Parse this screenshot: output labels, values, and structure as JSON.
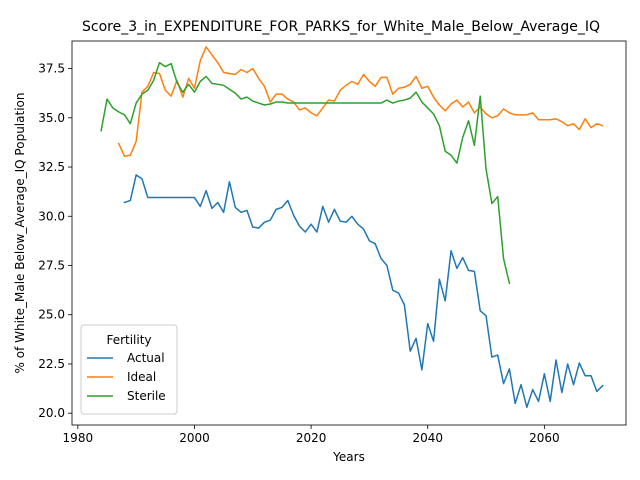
{
  "chart_data": {
    "type": "line",
    "title": "Score_3_in_EXPENDITURE_FOR_PARKS_for_White_Male_Below_Average_IQ",
    "xlabel": "Years",
    "ylabel": "% of White_Male Below_Average_IQ Population",
    "xlim": [
      1979,
      2074
    ],
    "ylim": [
      19.4,
      38.9
    ],
    "xticks": [
      1980,
      2000,
      2020,
      2040,
      2060
    ],
    "yticks": [
      20.0,
      22.5,
      25.0,
      27.5,
      30.0,
      32.5,
      35.0,
      37.5
    ],
    "grid": false,
    "legend": {
      "title": "Fertility",
      "placement": "lower-left"
    },
    "series": [
      {
        "name": "Actual",
        "color": "#1f77b4",
        "x": [
          1988,
          1989,
          1990,
          1991,
          1992,
          1993,
          1994,
          1995,
          1996,
          1997,
          1998,
          1999,
          2000,
          2001,
          2002,
          2003,
          2004,
          2005,
          2006,
          2007,
          2008,
          2009,
          2010,
          2011,
          2012,
          2013,
          2014,
          2015,
          2016,
          2017,
          2018,
          2019,
          2020,
          2021,
          2022,
          2023,
          2024,
          2025,
          2026,
          2027,
          2028,
          2029,
          2030,
          2031,
          2032,
          2033,
          2034,
          2035,
          2036,
          2037,
          2038,
          2039,
          2040,
          2041,
          2042,
          2043,
          2044,
          2045,
          2046,
          2047,
          2048,
          2049,
          2050,
          2051,
          2052,
          2053,
          2054,
          2055,
          2056,
          2057,
          2058,
          2059,
          2060,
          2061,
          2062,
          2063,
          2064,
          2065,
          2066,
          2067,
          2068,
          2069,
          2070
        ],
        "y": [
          30.7,
          30.8,
          32.1,
          31.9,
          30.95,
          30.95,
          30.95,
          30.95,
          30.95,
          30.95,
          30.95,
          30.95,
          30.95,
          30.5,
          31.3,
          30.4,
          30.7,
          30.2,
          31.75,
          30.45,
          30.2,
          30.3,
          29.45,
          29.4,
          29.7,
          29.8,
          30.35,
          30.45,
          30.8,
          30.05,
          29.5,
          29.2,
          29.6,
          29.2,
          30.5,
          29.7,
          30.35,
          29.75,
          29.7,
          30.0,
          29.6,
          29.35,
          28.75,
          28.6,
          27.85,
          27.5,
          26.25,
          26.1,
          25.5,
          23.15,
          23.8,
          22.2,
          24.55,
          23.65,
          26.8,
          25.7,
          28.25,
          27.35,
          27.9,
          27.25,
          27.2,
          25.2,
          24.95,
          22.85,
          22.95,
          21.5,
          22.25,
          20.5,
          21.45,
          20.3,
          21.2,
          20.6,
          22.0,
          20.6,
          22.7,
          21.05,
          22.5,
          21.45,
          22.55,
          21.9,
          21.9,
          21.1,
          21.4
        ]
      },
      {
        "name": "Ideal",
        "color": "#ff7f0e",
        "x": [
          1987,
          1988,
          1989,
          1990,
          1991,
          1992,
          1993,
          1994,
          1995,
          1996,
          1997,
          1998,
          1999,
          2000,
          2001,
          2002,
          2003,
          2004,
          2005,
          2006,
          2007,
          2008,
          2009,
          2010,
          2011,
          2012,
          2013,
          2014,
          2015,
          2016,
          2017,
          2018,
          2019,
          2020,
          2021,
          2022,
          2023,
          2024,
          2025,
          2026,
          2027,
          2028,
          2029,
          2030,
          2031,
          2032,
          2033,
          2034,
          2035,
          2036,
          2037,
          2038,
          2039,
          2040,
          2041,
          2042,
          2043,
          2044,
          2045,
          2046,
          2047,
          2048,
          2049,
          2050,
          2051,
          2052,
          2053,
          2054,
          2055,
          2056,
          2057,
          2058,
          2059,
          2060,
          2061,
          2062,
          2063,
          2064,
          2065,
          2066,
          2067,
          2068,
          2069,
          2070
        ],
        "y": [
          33.7,
          33.05,
          33.1,
          33.8,
          36.3,
          36.6,
          37.3,
          37.25,
          36.4,
          36.1,
          36.9,
          36.05,
          37.0,
          36.5,
          37.9,
          38.6,
          38.2,
          37.8,
          37.3,
          37.25,
          37.2,
          37.45,
          37.3,
          37.5,
          37.0,
          36.6,
          35.8,
          36.2,
          36.2,
          35.95,
          35.8,
          35.4,
          35.5,
          35.25,
          35.1,
          35.5,
          35.9,
          35.85,
          36.4,
          36.65,
          36.85,
          36.7,
          37.2,
          36.85,
          36.6,
          37.05,
          37.05,
          36.2,
          36.5,
          36.55,
          36.7,
          37.1,
          36.5,
          36.6,
          36.05,
          35.65,
          35.35,
          35.7,
          35.9,
          35.55,
          35.8,
          35.25,
          35.55,
          35.2,
          35.0,
          35.1,
          35.45,
          35.25,
          35.15,
          35.15,
          35.15,
          35.25,
          34.9,
          34.9,
          34.9,
          34.95,
          34.8,
          34.6,
          34.7,
          34.4,
          34.95,
          34.5,
          34.7,
          34.6
        ]
      },
      {
        "name": "Sterile",
        "color": "#2ca02c",
        "x": [
          1984,
          1985,
          1986,
          1987,
          1988,
          1989,
          1990,
          1991,
          1992,
          1993,
          1994,
          1995,
          1996,
          1997,
          1998,
          1999,
          2000,
          2001,
          2002,
          2003,
          2004,
          2005,
          2006,
          2007,
          2008,
          2009,
          2010,
          2011,
          2012,
          2013,
          2014,
          2015,
          2016,
          2017,
          2018,
          2019,
          2020,
          2021,
          2022,
          2023,
          2024,
          2025,
          2026,
          2027,
          2028,
          2029,
          2030,
          2031,
          2032,
          2033,
          2034,
          2035,
          2036,
          2037,
          2038,
          2039,
          2040,
          2041,
          2042,
          2043,
          2044,
          2045,
          2046,
          2047,
          2048,
          2049,
          2050,
          2051,
          2052,
          2053,
          2054
        ],
        "y": [
          34.35,
          35.95,
          35.5,
          35.3,
          35.15,
          34.7,
          35.75,
          36.2,
          36.4,
          36.9,
          37.8,
          37.6,
          37.75,
          36.8,
          36.3,
          36.7,
          36.3,
          36.85,
          37.1,
          36.75,
          36.7,
          36.65,
          36.45,
          36.25,
          35.95,
          36.05,
          35.85,
          35.75,
          35.65,
          35.7,
          35.8,
          35.8,
          35.75,
          35.75,
          35.75,
          35.75,
          35.75,
          35.75,
          35.75,
          35.75,
          35.75,
          35.75,
          35.75,
          35.75,
          35.75,
          35.75,
          35.75,
          35.75,
          35.75,
          35.9,
          35.75,
          35.85,
          35.9,
          36.0,
          36.3,
          35.8,
          35.5,
          35.2,
          34.6,
          33.3,
          33.1,
          32.7,
          34.0,
          34.85,
          33.6,
          36.1,
          32.4,
          30.65,
          31.0,
          27.85,
          26.6
        ]
      }
    ]
  }
}
